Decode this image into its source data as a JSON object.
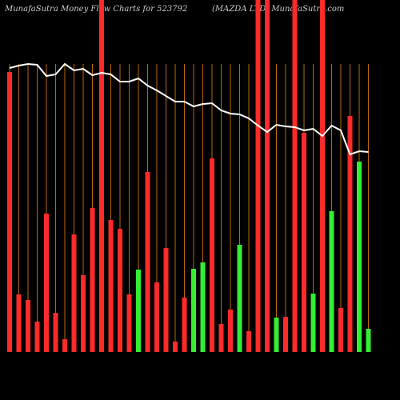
{
  "chart_data": {
    "type": "bar",
    "title": "MunafaSutra  Money Flow  Charts for 523792",
    "subtitle": "(MAZDA LTD) MunafaSutra.com",
    "ylim": [
      0,
      440
    ],
    "values": [
      350,
      72,
      65,
      38,
      173,
      49,
      16,
      147,
      96,
      180,
      440,
      165,
      154,
      72,
      103,
      225,
      87,
      130,
      13,
      68,
      104,
      112,
      242,
      35,
      53,
      134,
      26,
      440,
      440,
      43,
      44,
      440,
      274,
      73,
      440,
      176,
      55,
      295,
      238,
      29
    ],
    "colors": [
      "#ff2a2a",
      "#ff2a2a",
      "#ff2a2a",
      "#ff2a2a",
      "#ff2a2a",
      "#ff2a2a",
      "#ff2a2a",
      "#ff2a2a",
      "#ff2a2a",
      "#ff2a2a",
      "#ff2a2a",
      "#ff2a2a",
      "#ff2a2a",
      "#ff2a2a",
      "#33ee33",
      "#ff2a2a",
      "#ff2a2a",
      "#ff2a2a",
      "#ff2a2a",
      "#ff2a2a",
      "#33ee33",
      "#33ee33",
      "#ff2a2a",
      "#ff2a2a",
      "#ff2a2a",
      "#33ee33",
      "#ff2a2a",
      "#ff2a2a",
      "#ff2a2a",
      "#33ee33",
      "#ff2a2a",
      "#ff2a2a",
      "#ff2a2a",
      "#33ee33",
      "#ff2a2a",
      "#33ee33",
      "#ff2a2a",
      "#ff2a2a",
      "#33ee33",
      "#33ee33"
    ],
    "line": {
      "color": "#ffffff",
      "values": [
        355,
        358,
        360,
        359,
        345,
        347,
        360,
        352,
        354,
        346,
        349,
        347,
        338,
        338,
        342,
        333,
        327,
        320,
        313,
        313,
        307,
        310,
        311,
        302,
        298,
        297,
        292,
        283,
        275,
        284,
        282,
        281,
        277,
        279,
        270,
        283,
        277,
        247,
        251,
        250
      ]
    },
    "grid_color": "#b8680a"
  }
}
